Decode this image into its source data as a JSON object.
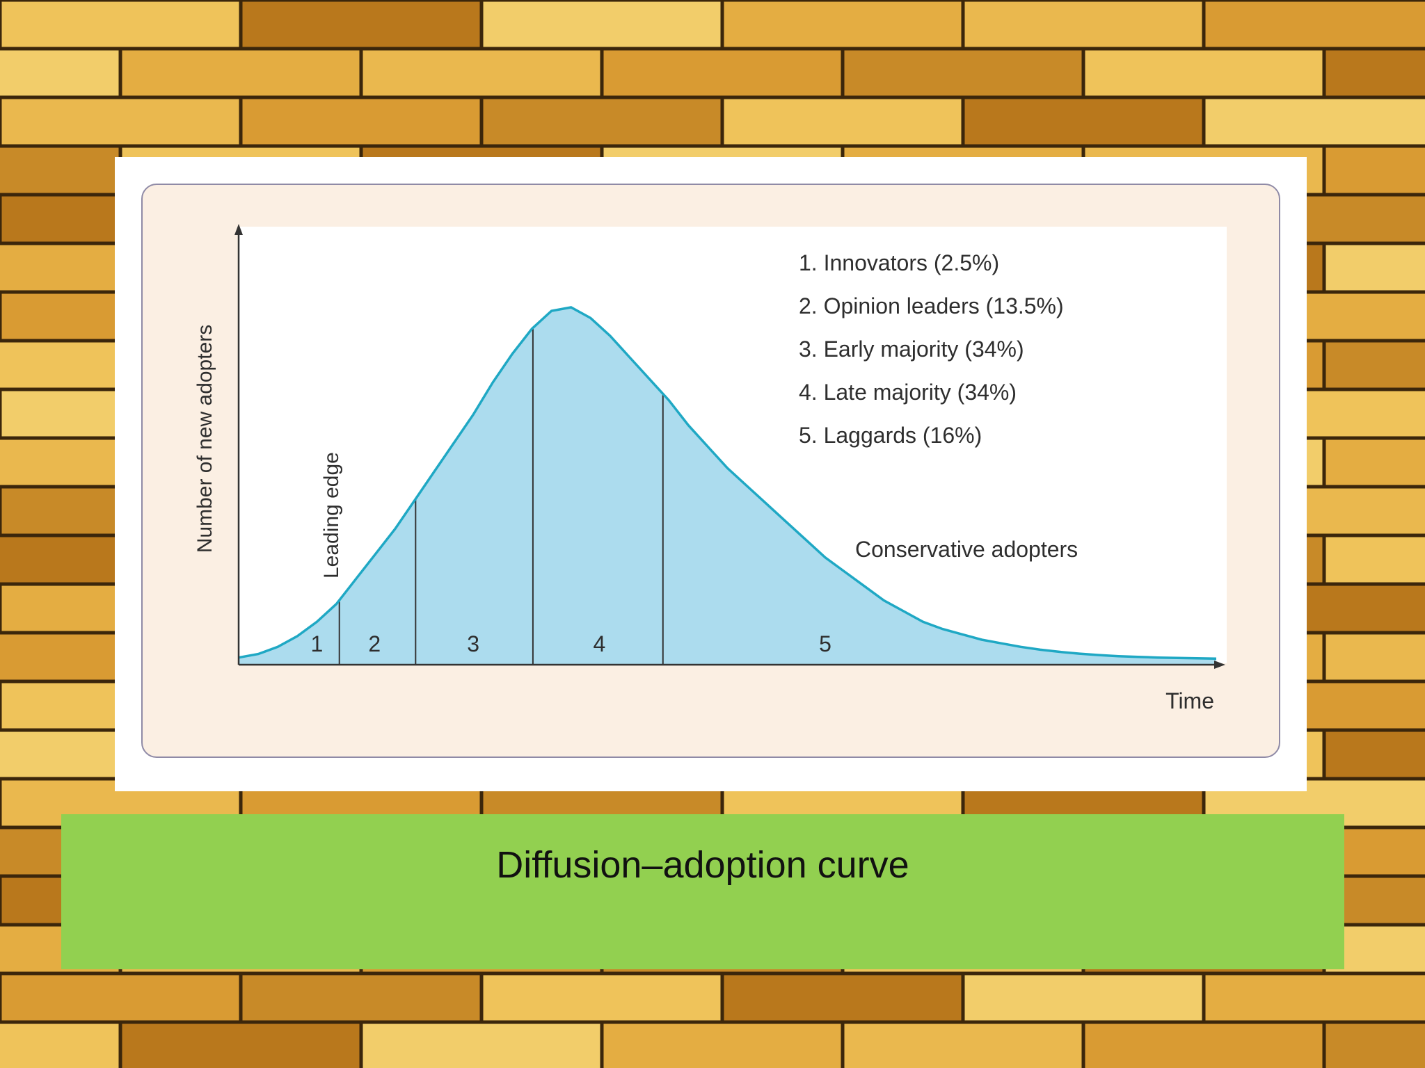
{
  "colors": {
    "brick_light": "#e9b64a",
    "brick_dark": "#b7761b",
    "mortar": "#3b260b",
    "card_background": "#ffffff",
    "panel_background": "#fbefe3",
    "curve_fill": "#acdcee",
    "curve_stroke": "#1fa8c4",
    "caption_background": "#92d050"
  },
  "chart_data": {
    "type": "area",
    "xlabel": "Time",
    "ylabel": "Number of new adopters",
    "curve": {
      "x": [
        0,
        20,
        40,
        60,
        80,
        100,
        120,
        140,
        160,
        180,
        200,
        220,
        240,
        260,
        280,
        300,
        320,
        340,
        360,
        380,
        400,
        420,
        440,
        460,
        480,
        500,
        520,
        540,
        560,
        580,
        600,
        620,
        640,
        660,
        680,
        700,
        720,
        740,
        760,
        780,
        800,
        820,
        840,
        860,
        880,
        900,
        920,
        940,
        960,
        980,
        1000
      ],
      "y": [
        0.02,
        0.03,
        0.05,
        0.08,
        0.12,
        0.17,
        0.24,
        0.31,
        0.38,
        0.46,
        0.54,
        0.62,
        0.7,
        0.79,
        0.87,
        0.94,
        0.99,
        1.0,
        0.97,
        0.92,
        0.86,
        0.8,
        0.74,
        0.67,
        0.61,
        0.55,
        0.5,
        0.45,
        0.4,
        0.35,
        0.3,
        0.26,
        0.22,
        0.18,
        0.15,
        0.12,
        0.1,
        0.085,
        0.07,
        0.06,
        0.05,
        0.042,
        0.036,
        0.031,
        0.027,
        0.024,
        0.022,
        0.02,
        0.019,
        0.018,
        0.017
      ],
      "xlim": [
        0,
        1000
      ],
      "ylim": [
        0,
        1.0
      ]
    },
    "boundaries_x": [
      103,
      181,
      301,
      434
    ],
    "segments": [
      {
        "number": "1",
        "x": 80
      },
      {
        "number": "2",
        "x": 139
      },
      {
        "number": "3",
        "x": 240
      },
      {
        "number": "4",
        "x": 369
      },
      {
        "number": "5",
        "x": 600
      }
    ],
    "legend": [
      "1. Innovators (2.5%)",
      "2. Opinion leaders (13.5%)",
      "3. Early majority (34%)",
      "4. Late majority (34%)",
      "5. Laggards (16%)"
    ],
    "annotations": {
      "leading_edge": "Leading edge",
      "conservative_adopters": "Conservative adopters"
    }
  },
  "caption": {
    "title": "Diffusion–adoption curve"
  }
}
